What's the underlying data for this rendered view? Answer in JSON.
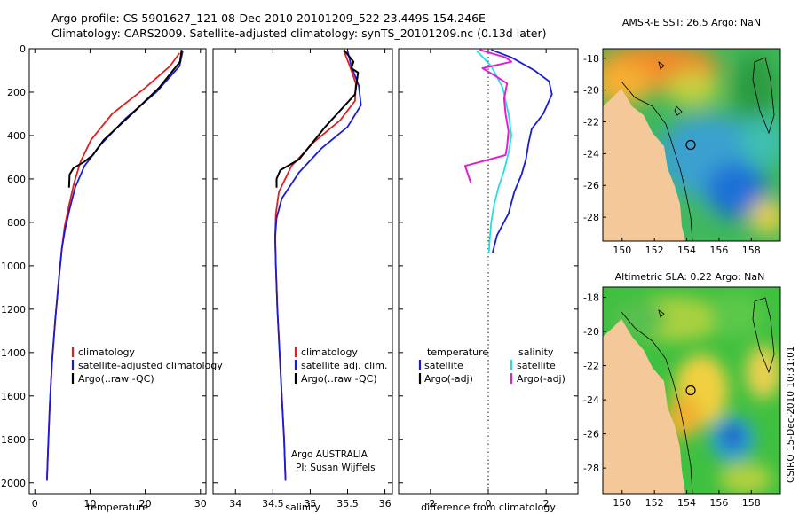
{
  "header": {
    "line1": "Argo profile: CS 5901627_121 08-Dec-2010 20101209_522 23.449S 154.246E",
    "line2": "Climatology: CARS2009. Satellite-adjusted climatology: synTS_20101209.nc (0.13d later)"
  },
  "credit": "Argo AUSTRALIA",
  "pi": "PI: Susan Wijffels",
  "stamp": "CSIRO 15-Dec-2010 10:31:01",
  "colors": {
    "climatology": "#e02020",
    "satellite": "#1a1adc",
    "argo": "#000000",
    "satellite_sal": "#22e0e0",
    "argo_sal": "#e020d0",
    "land": "#f5c89a"
  },
  "chart_data": [
    {
      "type": "line",
      "xlabel": "temperature",
      "ylabel": "",
      "xlim": [
        -1,
        31
      ],
      "ylim": [
        2050,
        0
      ],
      "xticks": [
        0,
        10,
        20,
        30
      ],
      "yticks": [
        0,
        200,
        400,
        600,
        800,
        1000,
        1200,
        1400,
        1600,
        1800,
        2000
      ],
      "legend": [
        "climatology",
        "satellite-adjusted climatology",
        "Argo(..raw -QC)"
      ],
      "series": [
        {
          "name": "climatology",
          "color": "#e02020",
          "x": [
            26.2,
            24.5,
            20.0,
            14.0,
            10.2,
            8.3,
            7.1,
            6.2,
            5.4,
            4.9,
            4.4,
            3.7,
            3.1,
            2.7,
            2.4,
            2.2
          ],
          "y": [
            20,
            80,
            180,
            300,
            420,
            520,
            620,
            720,
            820,
            920,
            1050,
            1250,
            1450,
            1650,
            1850,
            1990
          ]
        },
        {
          "name": "satellite-adjusted climatology",
          "color": "#1a1adc",
          "x": [
            26.8,
            26.2,
            22.0,
            16.5,
            12.0,
            9.0,
            7.3,
            6.3,
            5.5,
            4.9,
            4.4,
            3.7,
            3.1,
            2.7,
            2.4,
            2.2
          ],
          "y": [
            10,
            80,
            200,
            320,
            440,
            540,
            640,
            740,
            830,
            920,
            1050,
            1250,
            1450,
            1650,
            1850,
            1990
          ]
        },
        {
          "name": "Argo(..raw -QC)",
          "color": "#000000",
          "x": [
            26.6,
            26.3,
            22.5,
            18.0,
            12.5,
            10.5,
            9.0,
            7.0,
            6.3,
            6.2
          ],
          "y": [
            5,
            60,
            180,
            290,
            420,
            490,
            520,
            550,
            580,
            640
          ]
        }
      ]
    },
    {
      "type": "line",
      "xlabel": "salinity",
      "ylabel": "",
      "xlim": [
        33.7,
        36.1
      ],
      "ylim": [
        2050,
        0
      ],
      "xticks": [
        34,
        34.5,
        35,
        35.5,
        36
      ],
      "legend": [
        "climatology",
        "satellite adj. clim.",
        "Argo(..raw -QC)"
      ],
      "series": [
        {
          "name": "climatology",
          "color": "#e02020",
          "x": [
            35.45,
            35.53,
            35.61,
            35.6,
            35.4,
            35.05,
            34.75,
            34.58,
            34.54,
            34.53,
            34.54,
            34.56,
            34.59,
            34.62,
            34.65,
            34.67
          ],
          "y": [
            10,
            80,
            160,
            240,
            330,
            430,
            540,
            660,
            760,
            860,
            1000,
            1200,
            1400,
            1600,
            1800,
            1990
          ]
        },
        {
          "name": "satellite adj. clim.",
          "color": "#1a1adc",
          "x": [
            35.5,
            35.55,
            35.65,
            35.68,
            35.5,
            35.15,
            34.85,
            34.62,
            34.55,
            34.53,
            34.54,
            34.56,
            34.59,
            34.62,
            34.65,
            34.67
          ],
          "y": [
            10,
            80,
            170,
            260,
            360,
            460,
            570,
            690,
            780,
            870,
            1000,
            1200,
            1400,
            1600,
            1800,
            1990
          ]
        },
        {
          "name": "Argo(..raw -QC)",
          "color": "#000000",
          "x": [
            35.45,
            35.58,
            35.55,
            35.64,
            35.6,
            35.2,
            34.85,
            34.6,
            34.55,
            34.55
          ],
          "y": [
            5,
            60,
            90,
            110,
            210,
            360,
            510,
            560,
            600,
            640
          ]
        }
      ]
    },
    {
      "type": "line",
      "xlabel": "difference from climatology",
      "ylabel": "",
      "xlim": [
        -3.1,
        3.1
      ],
      "ylim": [
        2050,
        0
      ],
      "xticks": [
        -2,
        0,
        2
      ],
      "legend": [
        "temperature",
        "satellite",
        "Argo(-adj)",
        "salinity",
        "satellite",
        "Argo(-adj)"
      ],
      "series": [
        {
          "name": "satellite",
          "color": "#1a1adc",
          "x": [
            0.1,
            0.8,
            1.6,
            2.1,
            2.2,
            1.9,
            1.5,
            1.4,
            1.3,
            1.15,
            0.9,
            0.7,
            0.3,
            0.15
          ],
          "y": [
            5,
            40,
            100,
            150,
            210,
            300,
            370,
            430,
            510,
            580,
            660,
            760,
            860,
            940
          ]
        },
        {
          "name": "Argo(-adj) temperature",
          "color": "#000000",
          "x": [],
          "y": []
        },
        {
          "name": "satellite salinity",
          "color": "#22e0e0",
          "x": [
            -0.4,
            0.1,
            0.5,
            0.7,
            0.8,
            0.7,
            0.55,
            0.35,
            0.2,
            0.1,
            0.05,
            0.02
          ],
          "y": [
            10,
            80,
            180,
            300,
            400,
            480,
            560,
            640,
            720,
            800,
            880,
            940
          ]
        },
        {
          "name": "Argo(-adj) salinity",
          "color": "#e020d0",
          "x": [
            -0.3,
            0.6,
            0.8,
            -0.2,
            0.3,
            0.65,
            0.55,
            0.6,
            0.7,
            0.65,
            0.6,
            -0.8,
            -0.6
          ],
          "y": [
            5,
            40,
            60,
            90,
            130,
            160,
            230,
            300,
            380,
            450,
            490,
            540,
            620
          ]
        }
      ]
    },
    {
      "type": "heatmap",
      "title": "AMSR-E SST: 26.5 Argo: NaN",
      "xlim": [
        148.8,
        159.8
      ],
      "ylim": [
        -29.5,
        -17.4
      ],
      "xticks": [
        150,
        152,
        154,
        156,
        158
      ],
      "yticks": [
        -18,
        -20,
        -22,
        -24,
        -26,
        -28
      ],
      "marker": {
        "lon": 154.246,
        "lat": -23.449
      }
    },
    {
      "type": "heatmap",
      "title": "Altimetric SLA: 0.22 Argo: NaN",
      "xlim": [
        148.8,
        159.8
      ],
      "ylim": [
        -29.5,
        -17.4
      ],
      "xticks": [
        150,
        152,
        154,
        156,
        158
      ],
      "yticks": [
        -18,
        -20,
        -22,
        -24,
        -26,
        -28
      ],
      "marker": {
        "lon": 154.246,
        "lat": -23.449
      }
    }
  ]
}
